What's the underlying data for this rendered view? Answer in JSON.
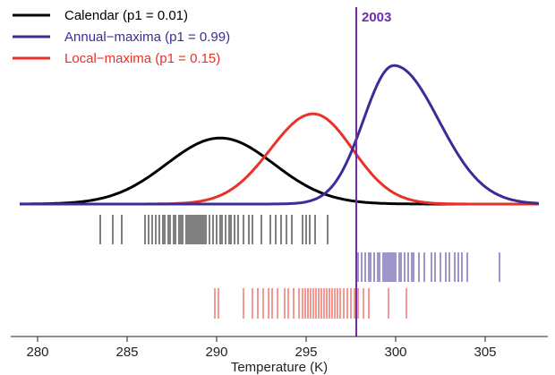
{
  "chart_data": {
    "type": "line",
    "xlabel": "Temperature (K)",
    "xlim": [
      278.5,
      308.5
    ],
    "xticks": [
      280,
      285,
      290,
      295,
      300,
      305
    ],
    "grid": false,
    "legend_position": "top-left",
    "annotation": {
      "label": "2003",
      "x": 297.8,
      "color": "#6f2da8"
    },
    "series": [
      {
        "name": "Calendar (p1 = 0.01)",
        "color": "#000000",
        "density": {
          "mode": 290.2,
          "sd_left": 3.0,
          "sd_right": 3.0,
          "peak": 0.41
        },
        "observations": [
          283.5,
          284.2,
          284.7,
          286.0,
          286.2,
          286.4,
          286.6,
          286.8,
          287.0,
          287.1,
          287.3,
          287.4,
          287.6,
          287.7,
          287.9,
          288.0,
          288.1,
          288.3,
          288.4,
          288.5,
          288.6,
          288.7,
          288.8,
          288.9,
          289.0,
          289.1,
          289.2,
          289.3,
          289.4,
          289.6,
          289.8,
          290.0,
          290.2,
          290.3,
          290.5,
          290.7,
          290.8,
          291.0,
          291.2,
          291.5,
          291.8,
          292.0,
          292.5,
          293.0,
          293.3,
          293.6,
          293.9,
          294.2,
          294.8,
          295.0,
          295.2,
          295.5,
          296.2,
          297.8
        ]
      },
      {
        "name": "Annual−maxima (p1 = 0.99)",
        "color": "#3a2d96",
        "density": {
          "mode": 299.9,
          "sd_left": 1.7,
          "sd_right": 2.5,
          "peak": 0.86
        },
        "observations": [
          297.9,
          298.1,
          298.3,
          298.5,
          298.6,
          298.8,
          299.0,
          299.1,
          299.3,
          299.4,
          299.5,
          299.6,
          299.7,
          299.8,
          299.9,
          300.0,
          300.2,
          300.3,
          300.5,
          300.7,
          300.9,
          301.0,
          301.3,
          301.6,
          302.0,
          302.2,
          302.5,
          302.8,
          303.0,
          303.3,
          303.5,
          303.7,
          304.0,
          305.8
        ]
      },
      {
        "name": "Local−maxima (p1 = 0.15)",
        "color": "#e8312a",
        "density": {
          "mode": 295.4,
          "sd_left": 2.4,
          "sd_right": 2.2,
          "peak": 0.56
        },
        "observations": [
          289.9,
          290.1,
          291.5,
          292.0,
          292.3,
          292.6,
          292.9,
          293.1,
          293.4,
          293.8,
          294.0,
          294.3,
          294.6,
          294.8,
          294.95,
          295.1,
          295.25,
          295.4,
          295.55,
          295.7,
          295.85,
          296.0,
          296.15,
          296.3,
          296.45,
          296.6,
          296.75,
          296.9,
          297.1,
          297.3,
          297.5,
          297.7,
          297.9,
          298.2,
          298.5,
          299.6,
          300.6
        ]
      }
    ]
  }
}
